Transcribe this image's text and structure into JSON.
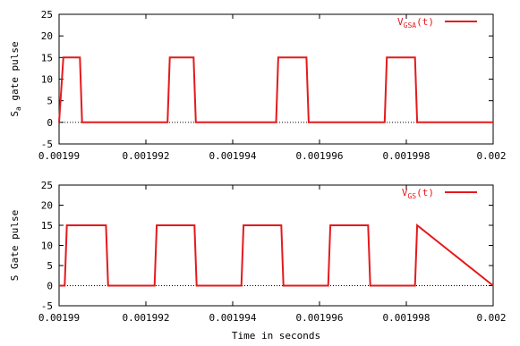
{
  "chart_data": [
    {
      "type": "line",
      "ylabel_main": "S",
      "ylabel_sub": "a",
      "ylabel_rest": " gate pulse",
      "xlabel": "",
      "xlim": [
        0.00199,
        0.002
      ],
      "ylim": [
        -5,
        25
      ],
      "xticks": [
        "0.00199",
        "0.001992",
        "0.001994",
        "0.001996",
        "0.001998",
        "0.002"
      ],
      "yticks": [
        "-5",
        "0",
        "5",
        "10",
        "15",
        "20",
        "25"
      ],
      "grid": false,
      "zero_line": true,
      "legend_position": "top-right",
      "series": [
        {
          "name_main": "V",
          "name_sub": "GSA",
          "name_rest": "(t)",
          "color": "#e41a1c",
          "x": [
            0.00199,
            0.0019901,
            0.00199018,
            0.00199048,
            0.00199053,
            0.0019925,
            0.00199255,
            0.0019927,
            0.0019931,
            0.00199315,
            0.001995,
            0.00199505,
            0.0019952,
            0.0019957,
            0.00199575,
            0.0019975,
            0.00199755,
            0.0019977,
            0.0019982,
            0.00199825,
            0.002
          ],
          "y": [
            0,
            15,
            15,
            15,
            0,
            0,
            15,
            15,
            15,
            0,
            0,
            15,
            15,
            15,
            0,
            0,
            15,
            15,
            15,
            0,
            0
          ]
        }
      ]
    },
    {
      "type": "line",
      "ylabel_main": "S Gate pulse",
      "ylabel_sub": "",
      "ylabel_rest": "",
      "xlabel": "Time in seconds",
      "xlim": [
        0.00199,
        0.002
      ],
      "ylim": [
        -5,
        25
      ],
      "xticks": [
        "0.00199",
        "0.001992",
        "0.001994",
        "0.001996",
        "0.001998",
        "0.002"
      ],
      "yticks": [
        "-5",
        "0",
        "5",
        "10",
        "15",
        "20",
        "25"
      ],
      "grid": false,
      "zero_line": true,
      "legend_position": "top-right",
      "series": [
        {
          "name_main": "V",
          "name_sub": "GS",
          "name_rest": "(t)",
          "color": "#e41a1c",
          "x": [
            0.00199,
            0.00199013,
            0.00199018,
            0.00199108,
            0.00199113,
            0.0019922,
            0.00199225,
            0.00199312,
            0.00199317,
            0.0019942,
            0.00199425,
            0.00199512,
            0.00199517,
            0.0019962,
            0.00199625,
            0.00199712,
            0.00199717,
            0.0019982,
            0.00199825,
            0.002
          ],
          "y": [
            0,
            0,
            15,
            15,
            0,
            0,
            15,
            15,
            0,
            0,
            15,
            15,
            0,
            0,
            15,
            15,
            0,
            0,
            15,
            0
          ]
        }
      ]
    }
  ]
}
